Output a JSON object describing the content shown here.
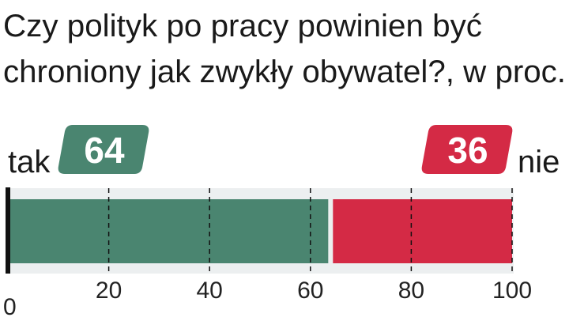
{
  "chart_data": {
    "type": "stacked-bar",
    "title": [
      "Czy polityk po pracy powinien być",
      "chroniony jak zwykły obywatel?, w proc."
    ],
    "series": [
      {
        "name": "tak",
        "color": "#4a8570",
        "values": [
          64
        ]
      },
      {
        "name": "nie",
        "color": "#d42a45",
        "values": [
          36
        ]
      }
    ],
    "xlim": [
      0,
      100
    ],
    "xticks": [
      0,
      20,
      40,
      60,
      80,
      100
    ],
    "grid": true
  }
}
